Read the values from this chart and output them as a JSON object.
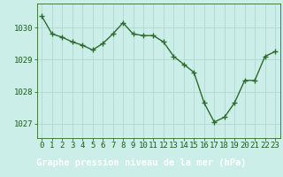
{
  "x": [
    0,
    1,
    2,
    3,
    4,
    5,
    6,
    7,
    8,
    9,
    10,
    11,
    12,
    13,
    14,
    15,
    16,
    17,
    18,
    19,
    20,
    21,
    22,
    23
  ],
  "y": [
    1030.35,
    1029.8,
    1029.7,
    1029.55,
    1029.45,
    1029.3,
    1029.5,
    1029.8,
    1030.15,
    1029.8,
    1029.75,
    1029.75,
    1029.55,
    1029.1,
    1028.85,
    1028.6,
    1027.65,
    1027.05,
    1027.2,
    1027.65,
    1028.35,
    1028.35,
    1029.1,
    1029.25
  ],
  "line_color": "#2d6a2d",
  "marker": "+",
  "marker_size": 4,
  "marker_linewidth": 1.0,
  "line_width": 1.0,
  "background_color": "#cceee8",
  "grid_color": "#aad4cc",
  "xlabel": "Graphe pression niveau de la mer (hPa)",
  "xlabel_color": "#ffffff",
  "xlabel_fontsize": 7.5,
  "tick_label_color": "#1a5c1a",
  "tick_fontsize": 6.5,
  "ylim": [
    1026.55,
    1030.75
  ],
  "yticks": [
    1027,
    1028,
    1029,
    1030
  ],
  "xlim": [
    -0.5,
    23.5
  ],
  "xticks": [
    0,
    1,
    2,
    3,
    4,
    5,
    6,
    7,
    8,
    9,
    10,
    11,
    12,
    13,
    14,
    15,
    16,
    17,
    18,
    19,
    20,
    21,
    22,
    23
  ],
  "spine_color": "#2d6a2d",
  "bottom_bar_color": "#2d6a2d"
}
